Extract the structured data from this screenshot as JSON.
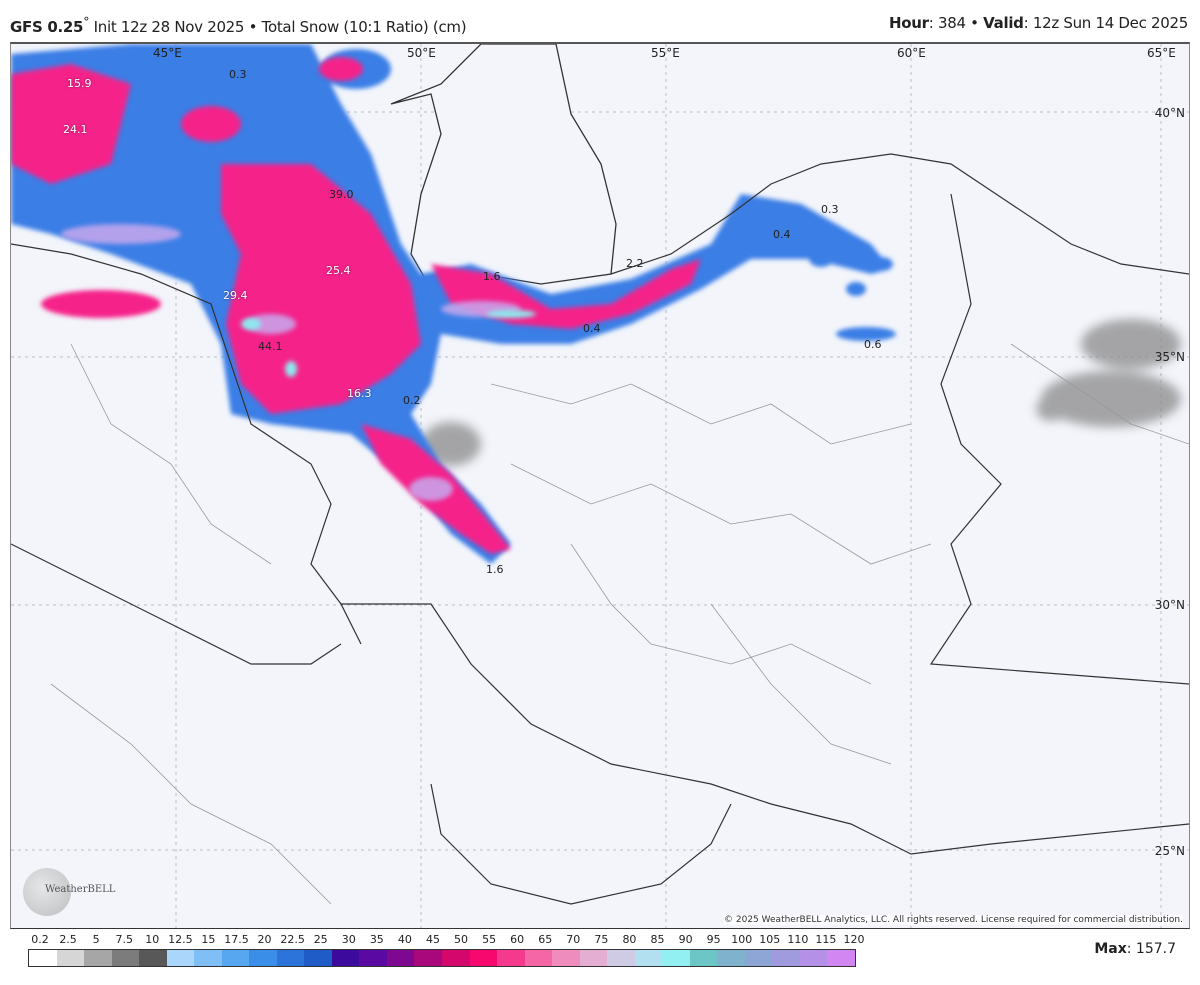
{
  "header": {
    "model": "GFS 0.25",
    "degree": "°",
    "init": " Init 12z 28 Nov 2025 • Total Snow (10:1 Ratio) (cm)",
    "hour_label": "Hour",
    "hour_value": ": 384 • ",
    "valid_label": "Valid",
    "valid_value": ": 12z Sun 14 Dec 2025"
  },
  "map": {
    "longitude_labels": [
      "45°E",
      "50°E",
      "55°E",
      "60°E",
      "65°E"
    ],
    "latitude_labels": [
      "40°N",
      "35°N",
      "30°N",
      "25°N"
    ],
    "value_labels": [
      "15.9",
      "24.1",
      "0.3",
      "39.0",
      "25.4",
      "29.4",
      "44.1",
      "16.3",
      "0.2",
      "1.6",
      "2.2",
      "0.3",
      "0.4",
      "0.6",
      "1.6",
      "0.4"
    ],
    "copyright": "© 2025 WeatherBELL Analytics, LLC. All rights reserved. License required for commercial distribution.",
    "logo_text": "WeatherBELL"
  },
  "legend": {
    "ticks": [
      "0.2",
      "2.5",
      "5",
      "7.5",
      "10",
      "12.5",
      "15",
      "17.5",
      "20",
      "22.5",
      "25",
      "30",
      "35",
      "40",
      "45",
      "50",
      "55",
      "60",
      "65",
      "70",
      "75",
      "80",
      "85",
      "90",
      "95",
      "100",
      "105",
      "110",
      "115",
      "120"
    ],
    "colors": [
      "#ffffff",
      "#d6d6d6",
      "#a6a6a6",
      "#7c7c7c",
      "#585858",
      "#a9d6fa",
      "#7fbff6",
      "#56a6f0",
      "#3b8ee8",
      "#2c74da",
      "#1f5cc8",
      "#3c0a9c",
      "#5a0aa2",
      "#7e0890",
      "#a8087c",
      "#d4086c",
      "#f6086e",
      "#f53a8e",
      "#f466a6",
      "#ee8cbe",
      "#e4aed2",
      "#cfcbe4",
      "#b2e0f0",
      "#92f0f2",
      "#6cc6c6",
      "#7fb2cc",
      "#8ea6d6",
      "#a09ade",
      "#b490e6",
      "#d286f2"
    ],
    "max_label": "Max",
    "max_value": ": 157.7"
  },
  "colors": {
    "pink": "#f5208a",
    "blue": "#3a7ee6",
    "purple": "#5a0aa2",
    "lavender": "#c8a8ee",
    "cyan": "#8ee8ee",
    "gray": "#8a8a8a"
  }
}
